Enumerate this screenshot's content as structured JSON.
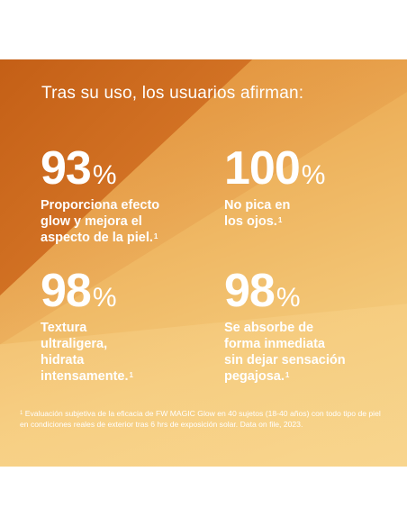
{
  "headline": "Tras su uso, los usuarios afirman:",
  "stats": [
    {
      "number": "93",
      "unit": "%",
      "lines": [
        "Proporciona efecto",
        "glow y mejora el",
        "aspecto de la piel."
      ],
      "mark": "1"
    },
    {
      "number": "100",
      "unit": "%",
      "lines": [
        "No pica en",
        "los ojos."
      ],
      "mark": "1"
    },
    {
      "number": "98",
      "unit": "%",
      "lines": [
        "Textura",
        "ultraligera,",
        "hidrata",
        "intensamente."
      ],
      "mark": "1"
    },
    {
      "number": "98",
      "unit": "%",
      "lines": [
        "Se absorbe de",
        "forma inmediata",
        "sin dejar sensación",
        "pegajosa."
      ],
      "mark": "1"
    }
  ],
  "footnote": {
    "mark": "1",
    "text": "Evaluación subjetiva de la eficacia de FW MAGIC Glow en 40 sujetos (18-40 años) con todo tipo de piel en condiciones reales de exterior tras 6 hrs de exposición solar. Data on file, 2023."
  },
  "colors": {
    "panel_dark": "#c45f16",
    "panel_light": "#f4cf84",
    "text": "#ffffff"
  }
}
